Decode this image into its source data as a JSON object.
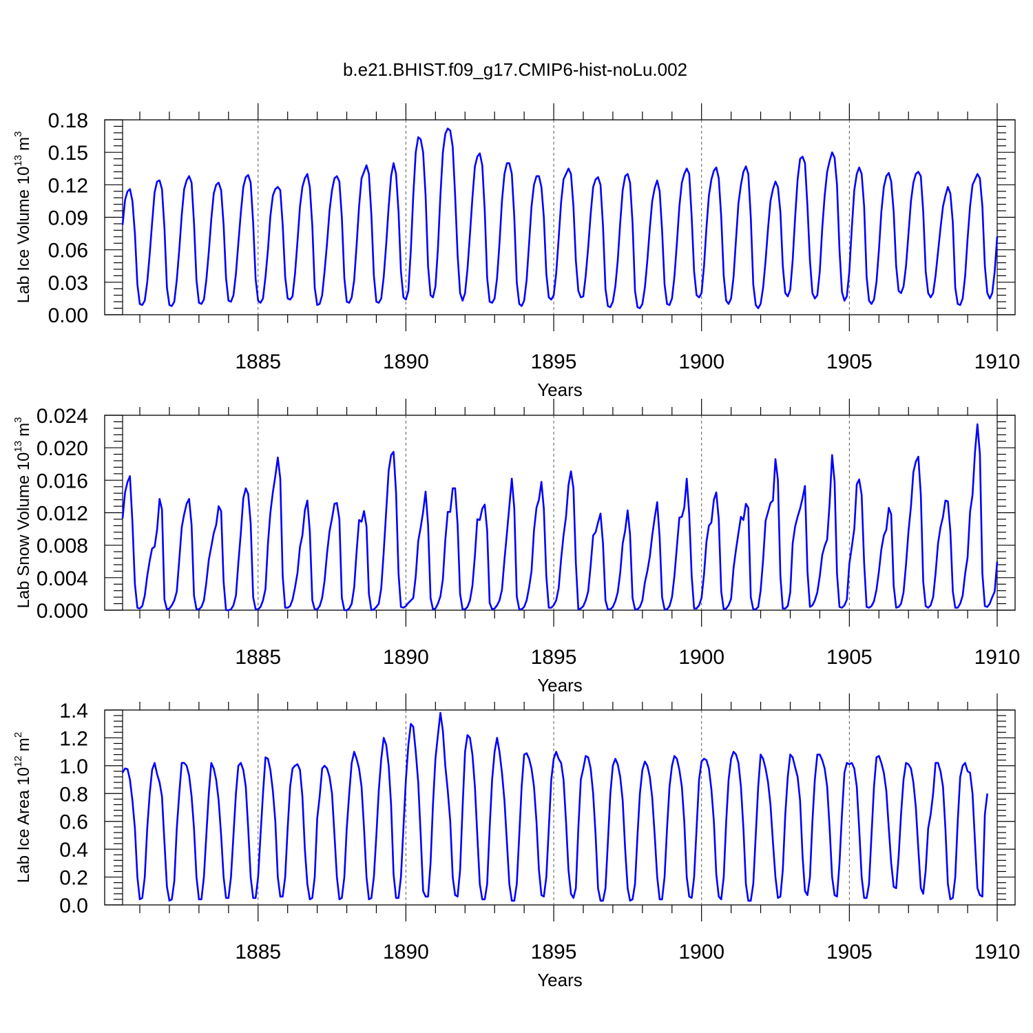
{
  "title": "b.e21.BHIST.f09_g17.CMIP6-hist-noLu.002",
  "series_color": "#0000ff",
  "chart_data": [
    {
      "type": "line",
      "ylabel": "Lab Ice Volume 10",
      "ylabel_exp": "13",
      "ylabel_unit": "m",
      "ylabel_unit_exp": "3",
      "xlabel": "Years",
      "xlim": [
        1880.417,
        1910.0
      ],
      "ylim": [
        0.0,
        0.18
      ],
      "xticks": [
        "1885",
        "1890",
        "1895",
        "1900",
        "1905",
        "1910"
      ],
      "yticks": [
        "0.00",
        "0.03",
        "0.06",
        "0.09",
        "0.12",
        "0.15",
        "0.18"
      ],
      "grid": "dashed vertical lines at every 5 years",
      "x_start": 1880.417,
      "x_step": 0.08333,
      "values": [
        0.083,
        0.106,
        0.114,
        0.116,
        0.105,
        0.075,
        0.028,
        0.01,
        0.009,
        0.013,
        0.03,
        0.056,
        0.085,
        0.113,
        0.123,
        0.124,
        0.116,
        0.08,
        0.025,
        0.009,
        0.008,
        0.012,
        0.032,
        0.06,
        0.092,
        0.116,
        0.124,
        0.128,
        0.122,
        0.085,
        0.032,
        0.011,
        0.01,
        0.014,
        0.032,
        0.058,
        0.088,
        0.112,
        0.12,
        0.122,
        0.115,
        0.083,
        0.034,
        0.013,
        0.012,
        0.018,
        0.038,
        0.066,
        0.094,
        0.118,
        0.127,
        0.129,
        0.122,
        0.085,
        0.033,
        0.013,
        0.011,
        0.015,
        0.035,
        0.06,
        0.091,
        0.11,
        0.116,
        0.118,
        0.115,
        0.083,
        0.035,
        0.015,
        0.014,
        0.017,
        0.038,
        0.068,
        0.1,
        0.118,
        0.126,
        0.13,
        0.118,
        0.082,
        0.025,
        0.009,
        0.01,
        0.018,
        0.04,
        0.066,
        0.096,
        0.115,
        0.126,
        0.128,
        0.123,
        0.09,
        0.034,
        0.012,
        0.011,
        0.016,
        0.032,
        0.064,
        0.1,
        0.126,
        0.132,
        0.138,
        0.13,
        0.092,
        0.036,
        0.012,
        0.011,
        0.015,
        0.035,
        0.065,
        0.1,
        0.128,
        0.14,
        0.13,
        0.095,
        0.04,
        0.016,
        0.014,
        0.022,
        0.06,
        0.11,
        0.15,
        0.164,
        0.162,
        0.15,
        0.11,
        0.045,
        0.018,
        0.016,
        0.026,
        0.061,
        0.11,
        0.15,
        0.167,
        0.172,
        0.17,
        0.155,
        0.11,
        0.055,
        0.02,
        0.013,
        0.02,
        0.042,
        0.074,
        0.108,
        0.137,
        0.146,
        0.149,
        0.138,
        0.096,
        0.034,
        0.012,
        0.011,
        0.015,
        0.034,
        0.066,
        0.105,
        0.13,
        0.14,
        0.14,
        0.13,
        0.09,
        0.03,
        0.01,
        0.008,
        0.013,
        0.032,
        0.066,
        0.1,
        0.12,
        0.128,
        0.128,
        0.118,
        0.09,
        0.038,
        0.016,
        0.014,
        0.018,
        0.038,
        0.07,
        0.104,
        0.125,
        0.13,
        0.135,
        0.13,
        0.1,
        0.05,
        0.022,
        0.016,
        0.017,
        0.036,
        0.062,
        0.093,
        0.118,
        0.125,
        0.127,
        0.12,
        0.082,
        0.024,
        0.008,
        0.007,
        0.012,
        0.026,
        0.05,
        0.085,
        0.115,
        0.128,
        0.13,
        0.122,
        0.085,
        0.022,
        0.007,
        0.006,
        0.01,
        0.025,
        0.05,
        0.08,
        0.105,
        0.117,
        0.124,
        0.114,
        0.078,
        0.028,
        0.01,
        0.009,
        0.015,
        0.035,
        0.066,
        0.1,
        0.122,
        0.13,
        0.135,
        0.13,
        0.09,
        0.04,
        0.018,
        0.016,
        0.02,
        0.045,
        0.08,
        0.11,
        0.125,
        0.133,
        0.136,
        0.126,
        0.09,
        0.036,
        0.013,
        0.01,
        0.015,
        0.035,
        0.07,
        0.103,
        0.12,
        0.132,
        0.137,
        0.13,
        0.09,
        0.028,
        0.009,
        0.006,
        0.01,
        0.025,
        0.05,
        0.08,
        0.105,
        0.116,
        0.123,
        0.118,
        0.095,
        0.045,
        0.02,
        0.017,
        0.023,
        0.05,
        0.09,
        0.125,
        0.144,
        0.146,
        0.14,
        0.1,
        0.05,
        0.02,
        0.015,
        0.018,
        0.04,
        0.08,
        0.11,
        0.132,
        0.142,
        0.15,
        0.145,
        0.12,
        0.06,
        0.021,
        0.013,
        0.017,
        0.04,
        0.08,
        0.115,
        0.13,
        0.136,
        0.13,
        0.1,
        0.035,
        0.013,
        0.01,
        0.014,
        0.03,
        0.06,
        0.095,
        0.118,
        0.128,
        0.131,
        0.123,
        0.095,
        0.045,
        0.022,
        0.02,
        0.026,
        0.045,
        0.075,
        0.105,
        0.122,
        0.13,
        0.132,
        0.128,
        0.095,
        0.04,
        0.02,
        0.016,
        0.02,
        0.036,
        0.058,
        0.08,
        0.1,
        0.11,
        0.118,
        0.112,
        0.085,
        0.025,
        0.01,
        0.009,
        0.015,
        0.036,
        0.07,
        0.1,
        0.12,
        0.125,
        0.13,
        0.126,
        0.1,
        0.045,
        0.02,
        0.015,
        0.02,
        0.04,
        0.072
      ]
    },
    {
      "type": "line",
      "ylabel": "Lab Snow Volume 10",
      "ylabel_exp": "13",
      "ylabel_unit": "m",
      "ylabel_unit_exp": "3",
      "xlabel": "Years",
      "xlim": [
        1880.417,
        1910.0
      ],
      "ylim": [
        0.0,
        0.024
      ],
      "xticks": [
        "1885",
        "1890",
        "1895",
        "1900",
        "1905",
        "1910"
      ],
      "yticks": [
        "0.000",
        "0.004",
        "0.008",
        "0.012",
        "0.016",
        "0.020",
        "0.024"
      ],
      "grid": "dashed vertical lines at every 5 years",
      "x_start": 1880.417,
      "x_step": 0.08333,
      "values": [
        0.0113,
        0.0145,
        0.0158,
        0.0165,
        0.0108,
        0.0032,
        0.0003,
        0.0002,
        0.0005,
        0.0018,
        0.0042,
        0.0061,
        0.0076,
        0.0078,
        0.0099,
        0.0137,
        0.0124,
        0.0013,
        0.0001,
        0.0002,
        0.0006,
        0.0012,
        0.0023,
        0.0062,
        0.0102,
        0.0118,
        0.0131,
        0.0137,
        0.0105,
        0.0018,
        0.0001,
        0.0001,
        0.0004,
        0.0012,
        0.0034,
        0.0062,
        0.0078,
        0.0095,
        0.0105,
        0.0128,
        0.0122,
        0.0035,
        0.0,
        0.0,
        0.0001,
        0.0006,
        0.0018,
        0.0058,
        0.0095,
        0.0138,
        0.015,
        0.0143,
        0.0107,
        0.0016,
        0.0001,
        0.0001,
        0.0004,
        0.0012,
        0.0026,
        0.0082,
        0.012,
        0.0145,
        0.0165,
        0.0188,
        0.0162,
        0.0042,
        0.0003,
        0.0003,
        0.0005,
        0.0013,
        0.0028,
        0.0046,
        0.0078,
        0.0092,
        0.0123,
        0.0135,
        0.0097,
        0.0012,
        0.0001,
        0.0001,
        0.0005,
        0.0015,
        0.0036,
        0.007,
        0.0097,
        0.0113,
        0.0131,
        0.0132,
        0.0112,
        0.0015,
        0.0,
        0.0,
        0.0002,
        0.0008,
        0.0028,
        0.0072,
        0.0111,
        0.0109,
        0.0122,
        0.0103,
        0.002,
        0.0,
        0.0001,
        0.0004,
        0.0008,
        0.0027,
        0.0072,
        0.0122,
        0.0172,
        0.0191,
        0.0195,
        0.0145,
        0.0045,
        0.0004,
        0.0003,
        0.0005,
        0.0009,
        0.0012,
        0.0015,
        0.0042,
        0.0085,
        0.0102,
        0.0121,
        0.0146,
        0.0105,
        0.0015,
        0.0001,
        0.0002,
        0.0008,
        0.0017,
        0.0038,
        0.0086,
        0.0121,
        0.0121,
        0.015,
        0.015,
        0.0105,
        0.002,
        0.0001,
        0.0001,
        0.0004,
        0.0012,
        0.003,
        0.0067,
        0.0112,
        0.0111,
        0.0125,
        0.013,
        0.0098,
        0.0009,
        0.0001,
        0.0002,
        0.0006,
        0.0012,
        0.0025,
        0.0062,
        0.0095,
        0.0128,
        0.0162,
        0.0125,
        0.0017,
        0.0001,
        0.0001,
        0.0004,
        0.0012,
        0.0028,
        0.0048,
        0.0098,
        0.0126,
        0.0136,
        0.0158,
        0.0125,
        0.0042,
        0.0003,
        0.0003,
        0.0006,
        0.0012,
        0.0027,
        0.0063,
        0.0092,
        0.0115,
        0.0154,
        0.0171,
        0.015,
        0.0058,
        0.0001,
        0.0002,
        0.0005,
        0.0012,
        0.0023,
        0.0055,
        0.0092,
        0.0096,
        0.0108,
        0.0119,
        0.0082,
        0.0012,
        0.0001,
        0.0001,
        0.0004,
        0.0011,
        0.0022,
        0.0046,
        0.0082,
        0.0098,
        0.0123,
        0.0093,
        0.0015,
        0.0001,
        0.0001,
        0.0004,
        0.0012,
        0.0034,
        0.0048,
        0.0066,
        0.0092,
        0.0114,
        0.0133,
        0.0089,
        0.0016,
        0.0001,
        0.0001,
        0.0005,
        0.0016,
        0.0042,
        0.0078,
        0.0114,
        0.0115,
        0.0126,
        0.0162,
        0.0118,
        0.0042,
        0.0002,
        0.0002,
        0.0006,
        0.0015,
        0.0044,
        0.0084,
        0.0104,
        0.0108,
        0.0136,
        0.0145,
        0.0112,
        0.0023,
        0.0001,
        0.0002,
        0.0006,
        0.0014,
        0.0052,
        0.0075,
        0.0095,
        0.0115,
        0.0111,
        0.0131,
        0.0126,
        0.0016,
        0.0001,
        0.0001,
        0.0004,
        0.0024,
        0.0062,
        0.011,
        0.0121,
        0.0132,
        0.0135,
        0.0186,
        0.016,
        0.0042,
        0.0002,
        0.0002,
        0.0005,
        0.0022,
        0.0082,
        0.0103,
        0.0115,
        0.0125,
        0.0138,
        0.0153,
        0.0048,
        0.0004,
        0.0006,
        0.0012,
        0.0022,
        0.0042,
        0.0068,
        0.0079,
        0.0087,
        0.0132,
        0.0191,
        0.0158,
        0.0045,
        0.0004,
        0.0003,
        0.0006,
        0.0013,
        0.0057,
        0.0078,
        0.01,
        0.0155,
        0.0161,
        0.0142,
        0.0058,
        0.0004,
        0.0003,
        0.0005,
        0.0011,
        0.0025,
        0.0048,
        0.0075,
        0.0092,
        0.0099,
        0.0126,
        0.0118,
        0.003,
        0.0003,
        0.0004,
        0.0008,
        0.0022,
        0.0056,
        0.0097,
        0.0128,
        0.017,
        0.0183,
        0.0189,
        0.0142,
        0.0035,
        0.0005,
        0.0003,
        0.0006,
        0.0016,
        0.0045,
        0.0082,
        0.0102,
        0.0115,
        0.0135,
        0.0134,
        0.0097,
        0.0023,
        0.0003,
        0.0003,
        0.0008,
        0.0018,
        0.0045,
        0.0065,
        0.0121,
        0.0142,
        0.0195,
        0.0229,
        0.0192,
        0.0045,
        0.0005,
        0.0004,
        0.0008,
        0.0016,
        0.0023,
        0.006
      ]
    },
    {
      "type": "line",
      "ylabel": "Lab Ice Area 10",
      "ylabel_exp": "12",
      "ylabel_unit": "m",
      "ylabel_unit_exp": "2",
      "xlabel": "Years",
      "xlim": [
        1880.417,
        1910.0
      ],
      "ylim": [
        0.0,
        1.4
      ],
      "xticks": [
        "1885",
        "1890",
        "1895",
        "1900",
        "1905",
        "1910"
      ],
      "yticks": [
        "0.0",
        "0.2",
        "0.4",
        "0.6",
        "0.8",
        "1.0",
        "1.2",
        "1.4"
      ],
      "grid": "dashed vertical lines at every 5 years",
      "x_start": 1880.417,
      "x_step": 0.08333,
      "values": [
        0.95,
        0.98,
        0.975,
        0.9,
        0.75,
        0.55,
        0.2,
        0.04,
        0.05,
        0.2,
        0.55,
        0.8,
        0.97,
        1.02,
        0.94,
        0.88,
        0.78,
        0.45,
        0.13,
        0.03,
        0.04,
        0.17,
        0.55,
        0.8,
        1.02,
        1.02,
        1.0,
        0.93,
        0.78,
        0.55,
        0.2,
        0.04,
        0.04,
        0.2,
        0.5,
        0.8,
        1.02,
        0.98,
        0.9,
        0.75,
        0.5,
        0.2,
        0.05,
        0.05,
        0.2,
        0.5,
        0.8,
        1.0,
        1.02,
        0.97,
        0.85,
        0.55,
        0.2,
        0.05,
        0.05,
        0.2,
        0.5,
        0.8,
        1.06,
        1.05,
        0.97,
        0.82,
        0.6,
        0.2,
        0.06,
        0.06,
        0.2,
        0.55,
        0.85,
        0.98,
        1.0,
        1.01,
        0.97,
        0.78,
        0.4,
        0.15,
        0.04,
        0.05,
        0.2,
        0.62,
        0.78,
        0.98,
        1.0,
        0.98,
        0.92,
        0.8,
        0.5,
        0.2,
        0.04,
        0.05,
        0.2,
        0.55,
        0.8,
        1.02,
        1.1,
        1.05,
        0.98,
        0.85,
        0.55,
        0.2,
        0.04,
        0.05,
        0.2,
        0.5,
        0.82,
        1.05,
        1.2,
        1.15,
        1.0,
        0.72,
        0.22,
        0.05,
        0.05,
        0.2,
        0.55,
        0.9,
        1.15,
        1.3,
        1.28,
        1.1,
        0.88,
        0.5,
        0.1,
        0.06,
        0.06,
        0.3,
        0.72,
        1.05,
        1.22,
        1.38,
        1.25,
        1.0,
        0.82,
        0.6,
        0.2,
        0.07,
        0.06,
        0.25,
        0.7,
        1.1,
        1.22,
        1.2,
        1.08,
        0.85,
        0.5,
        0.15,
        0.04,
        0.04,
        0.15,
        0.55,
        0.9,
        1.1,
        1.2,
        1.1,
        0.95,
        0.75,
        0.45,
        0.15,
        0.03,
        0.03,
        0.15,
        0.5,
        0.85,
        1.08,
        1.09,
        1.05,
        0.98,
        0.85,
        0.6,
        0.25,
        0.07,
        0.06,
        0.2,
        0.55,
        0.9,
        1.05,
        1.1,
        1.05,
        1.02,
        0.9,
        0.6,
        0.25,
        0.08,
        0.05,
        0.12,
        0.55,
        0.9,
        0.98,
        1.07,
        1.06,
        0.98,
        0.8,
        0.5,
        0.12,
        0.03,
        0.03,
        0.12,
        0.45,
        0.8,
        1.0,
        1.05,
        1.01,
        0.92,
        0.75,
        0.4,
        0.12,
        0.03,
        0.04,
        0.15,
        0.5,
        0.8,
        0.97,
        1.03,
        1.0,
        0.92,
        0.77,
        0.5,
        0.2,
        0.04,
        0.04,
        0.2,
        0.55,
        0.85,
        1.0,
        1.07,
        1.05,
        0.97,
        0.85,
        0.6,
        0.2,
        0.06,
        0.05,
        0.2,
        0.55,
        0.9,
        1.03,
        1.05,
        1.04,
        0.98,
        0.83,
        0.6,
        0.22,
        0.06,
        0.04,
        0.2,
        0.6,
        0.9,
        1.05,
        1.1,
        1.08,
        1.02,
        0.85,
        0.55,
        0.15,
        0.03,
        0.03,
        0.15,
        0.5,
        0.85,
        1.08,
        1.05,
        0.98,
        0.88,
        0.72,
        0.45,
        0.2,
        0.05,
        0.06,
        0.25,
        0.65,
        0.92,
        1.08,
        1.06,
        0.99,
        0.92,
        0.75,
        0.35,
        0.1,
        0.07,
        0.2,
        0.6,
        0.9,
        1.08,
        1.08,
        1.04,
        0.98,
        0.85,
        0.55,
        0.2,
        0.07,
        0.06,
        0.3,
        0.65,
        0.95,
        1.02,
        1.01,
        1.02,
        0.98,
        0.85,
        0.55,
        0.2,
        0.05,
        0.05,
        0.15,
        0.5,
        0.85,
        1.06,
        1.07,
        1.02,
        0.95,
        0.82,
        0.55,
        0.3,
        0.13,
        0.12,
        0.35,
        0.65,
        0.9,
        1.02,
        1.01,
        0.98,
        0.88,
        0.7,
        0.4,
        0.12,
        0.08,
        0.25,
        0.55,
        0.65,
        0.8,
        1.02,
        1.02,
        0.96,
        0.85,
        0.55,
        0.15,
        0.04,
        0.05,
        0.2,
        0.6,
        0.92,
        1.0,
        1.02,
        0.96,
        0.95,
        0.8,
        0.45,
        0.12,
        0.07,
        0.06,
        0.65,
        0.8
      ]
    }
  ]
}
